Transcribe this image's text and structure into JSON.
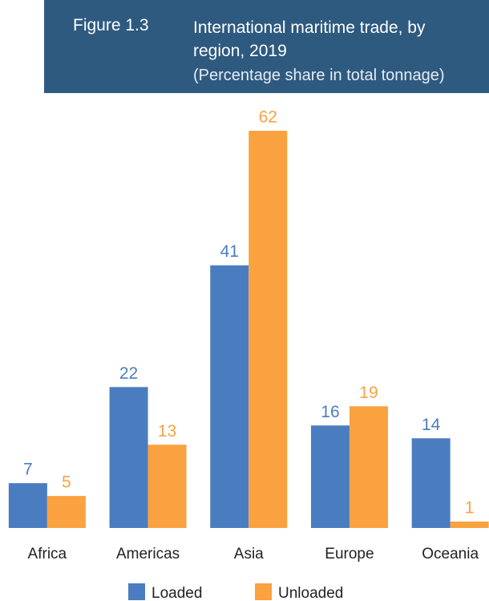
{
  "chart_data": {
    "type": "bar",
    "figure": "Figure 1.3",
    "title": "International maritime trade, by region, 2019",
    "subtitle": "(Percentage share in total tonnage)",
    "categories": [
      "Africa",
      "Americas",
      "Asia",
      "Europe",
      "Oceania"
    ],
    "series": [
      {
        "name": "Loaded",
        "color": "#4a7dc0",
        "values": [
          7,
          22,
          41,
          16,
          14
        ]
      },
      {
        "name": "Unloaded",
        "color": "#f9a23f",
        "values": [
          5,
          13,
          62,
          19,
          1
        ]
      }
    ]
  }
}
